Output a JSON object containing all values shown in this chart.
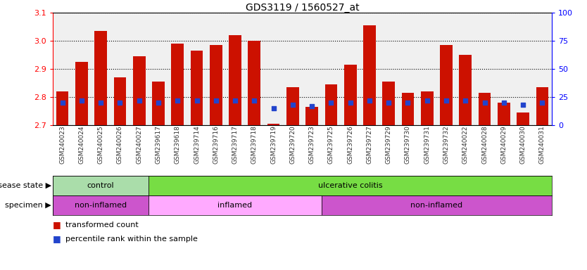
{
  "title": "GDS3119 / 1560527_at",
  "samples": [
    "GSM240023",
    "GSM240024",
    "GSM240025",
    "GSM240026",
    "GSM240027",
    "GSM239617",
    "GSM239618",
    "GSM239714",
    "GSM239716",
    "GSM239717",
    "GSM239718",
    "GSM239719",
    "GSM239720",
    "GSM239723",
    "GSM239725",
    "GSM239726",
    "GSM239727",
    "GSM239729",
    "GSM239730",
    "GSM239731",
    "GSM239732",
    "GSM240022",
    "GSM240028",
    "GSM240029",
    "GSM240030",
    "GSM240031"
  ],
  "transformed_count": [
    2.82,
    2.925,
    3.035,
    2.87,
    2.945,
    2.855,
    2.99,
    2.965,
    2.985,
    3.02,
    3.0,
    2.705,
    2.835,
    2.765,
    2.845,
    2.915,
    3.055,
    2.855,
    2.815,
    2.82,
    2.985,
    2.95,
    2.815,
    2.78,
    2.745,
    2.835
  ],
  "percentile_rank": [
    20,
    22,
    20,
    20,
    22,
    20,
    22,
    22,
    22,
    22,
    22,
    15,
    18,
    17,
    20,
    20,
    22,
    20,
    20,
    22,
    22,
    22,
    20,
    20,
    18,
    20
  ],
  "ylim_left": [
    2.7,
    3.1
  ],
  "ylim_right": [
    0,
    100
  ],
  "yticks_left": [
    2.7,
    2.8,
    2.9,
    3.0,
    3.1
  ],
  "yticks_right": [
    0,
    25,
    50,
    75,
    100
  ],
  "bar_color": "#cc1100",
  "dot_color": "#2244cc",
  "chart_bg": "#f0f0f0",
  "disease_state": {
    "groups": [
      {
        "label": "control",
        "start": 0,
        "end": 5,
        "color": "#aaddaa"
      },
      {
        "label": "ulcerative colitis",
        "start": 5,
        "end": 26,
        "color": "#77dd44"
      }
    ]
  },
  "specimen": {
    "groups": [
      {
        "label": "non-inflamed",
        "start": 0,
        "end": 5,
        "color": "#cc55cc"
      },
      {
        "label": "inflamed",
        "start": 5,
        "end": 14,
        "color": "#ffaaff"
      },
      {
        "label": "non-inflamed",
        "start": 14,
        "end": 26,
        "color": "#cc55cc"
      }
    ]
  },
  "legend_items": [
    {
      "label": "transformed count",
      "color": "#cc1100"
    },
    {
      "label": "percentile rank within the sample",
      "color": "#2244cc"
    }
  ]
}
